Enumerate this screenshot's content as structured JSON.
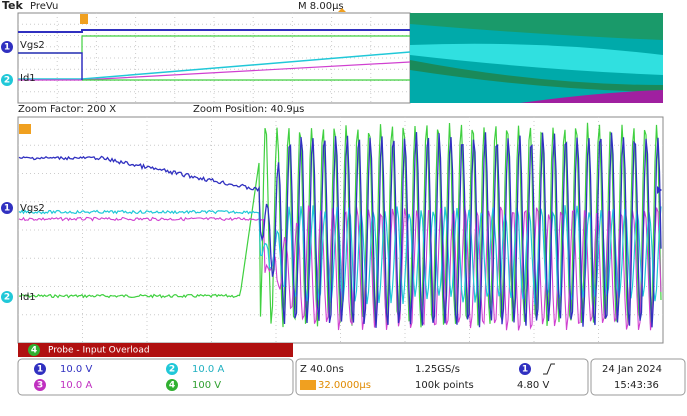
{
  "header": {
    "brand": "Tek",
    "status": "PreVu",
    "timebase": "M 8.00µs"
  },
  "overview": {
    "labels": [
      {
        "channel": "1",
        "name": "Vgs2"
      },
      {
        "channel": "2",
        "name": "Id1"
      }
    ]
  },
  "zoom": {
    "factor": "Zoom Factor: 200 X",
    "position": "Zoom Position: 40.9µs",
    "labels": [
      {
        "channel": "1",
        "name": "Vgs2"
      },
      {
        "channel": "2",
        "name": "Id1"
      }
    ],
    "warning_channel": "4",
    "warning": "Probe - Input Overload"
  },
  "channels": [
    {
      "id": "1",
      "scale": "10.0 V"
    },
    {
      "id": "2",
      "scale": "10.0 A"
    },
    {
      "id": "3",
      "scale": "10.0 A"
    },
    {
      "id": "4",
      "scale": "100 V"
    }
  ],
  "acquisition": {
    "zoom_scale": "Z 40.0ns",
    "sample_rate": "1.25GS/s",
    "trigger_position": "32.0000µs",
    "record_length": "100k points"
  },
  "trigger": {
    "source": "1",
    "level": "4.80 V"
  },
  "datetime": {
    "date": "24 Jan 2024",
    "time": "15:43:36"
  }
}
